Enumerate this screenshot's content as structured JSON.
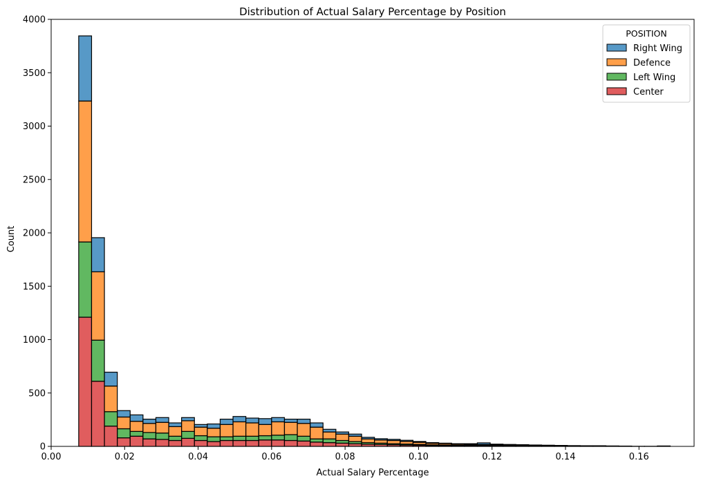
{
  "chart_data": {
    "type": "bar",
    "title": "Distribution of Actual Salary Percentage by Position",
    "xlabel": "Actual Salary Percentage",
    "ylabel": "Count",
    "xlim": [
      0.0,
      0.175
    ],
    "ylim": [
      0,
      4000
    ],
    "xticks": [
      "0.00",
      "0.02",
      "0.04",
      "0.06",
      "0.08",
      "0.10",
      "0.12",
      "0.14",
      "0.16"
    ],
    "yticks": [
      "0",
      "500",
      "1000",
      "1500",
      "2000",
      "2500",
      "3000",
      "3500",
      "4000"
    ],
    "stacked": true,
    "bin_start": 0.0075,
    "bin_width": 0.0035,
    "legend": {
      "title": "POSITION",
      "placement": "top-right"
    },
    "series": [
      {
        "name": "Center",
        "color": "#d62728",
        "values": [
          1210,
          610,
          190,
          80,
          95,
          70,
          65,
          55,
          75,
          55,
          45,
          55,
          55,
          55,
          60,
          60,
          55,
          50,
          40,
          35,
          30,
          25,
          20,
          18,
          15,
          12,
          10,
          8,
          8,
          8,
          8,
          6,
          6,
          5,
          5,
          4,
          3,
          3,
          2,
          2,
          2,
          1,
          1,
          1,
          1,
          1
        ]
      },
      {
        "name": "Left Wing",
        "color": "#2ca02c",
        "values": [
          705,
          385,
          135,
          85,
          45,
          60,
          60,
          40,
          65,
          45,
          45,
          35,
          40,
          40,
          40,
          45,
          55,
          45,
          30,
          35,
          25,
          20,
          15,
          12,
          10,
          10,
          8,
          6,
          5,
          4,
          4,
          4,
          3,
          3,
          3,
          2,
          2,
          1,
          1,
          1,
          1,
          1,
          0,
          0,
          0,
          0
        ]
      },
      {
        "name": "Defence",
        "color": "#ff7f0e",
        "values": [
          1320,
          640,
          240,
          110,
          95,
          85,
          100,
          90,
          100,
          80,
          80,
          115,
          135,
          125,
          105,
          125,
          115,
          120,
          110,
          65,
          60,
          50,
          35,
          30,
          30,
          25,
          20,
          15,
          13,
          10,
          8,
          8,
          7,
          6,
          5,
          4,
          4,
          3,
          3,
          2,
          2,
          1,
          1,
          0,
          0,
          0
        ]
      },
      {
        "name": "Right Wing",
        "color": "#1f77b4",
        "values": [
          610,
          320,
          130,
          60,
          60,
          40,
          45,
          35,
          30,
          25,
          40,
          50,
          50,
          45,
          55,
          40,
          30,
          40,
          40,
          25,
          20,
          20,
          15,
          12,
          11,
          10,
          8,
          6,
          4,
          3,
          5,
          15,
          5,
          4,
          3,
          3,
          2,
          2,
          1,
          1,
          1,
          1,
          1,
          0,
          0,
          3
        ]
      }
    ]
  }
}
